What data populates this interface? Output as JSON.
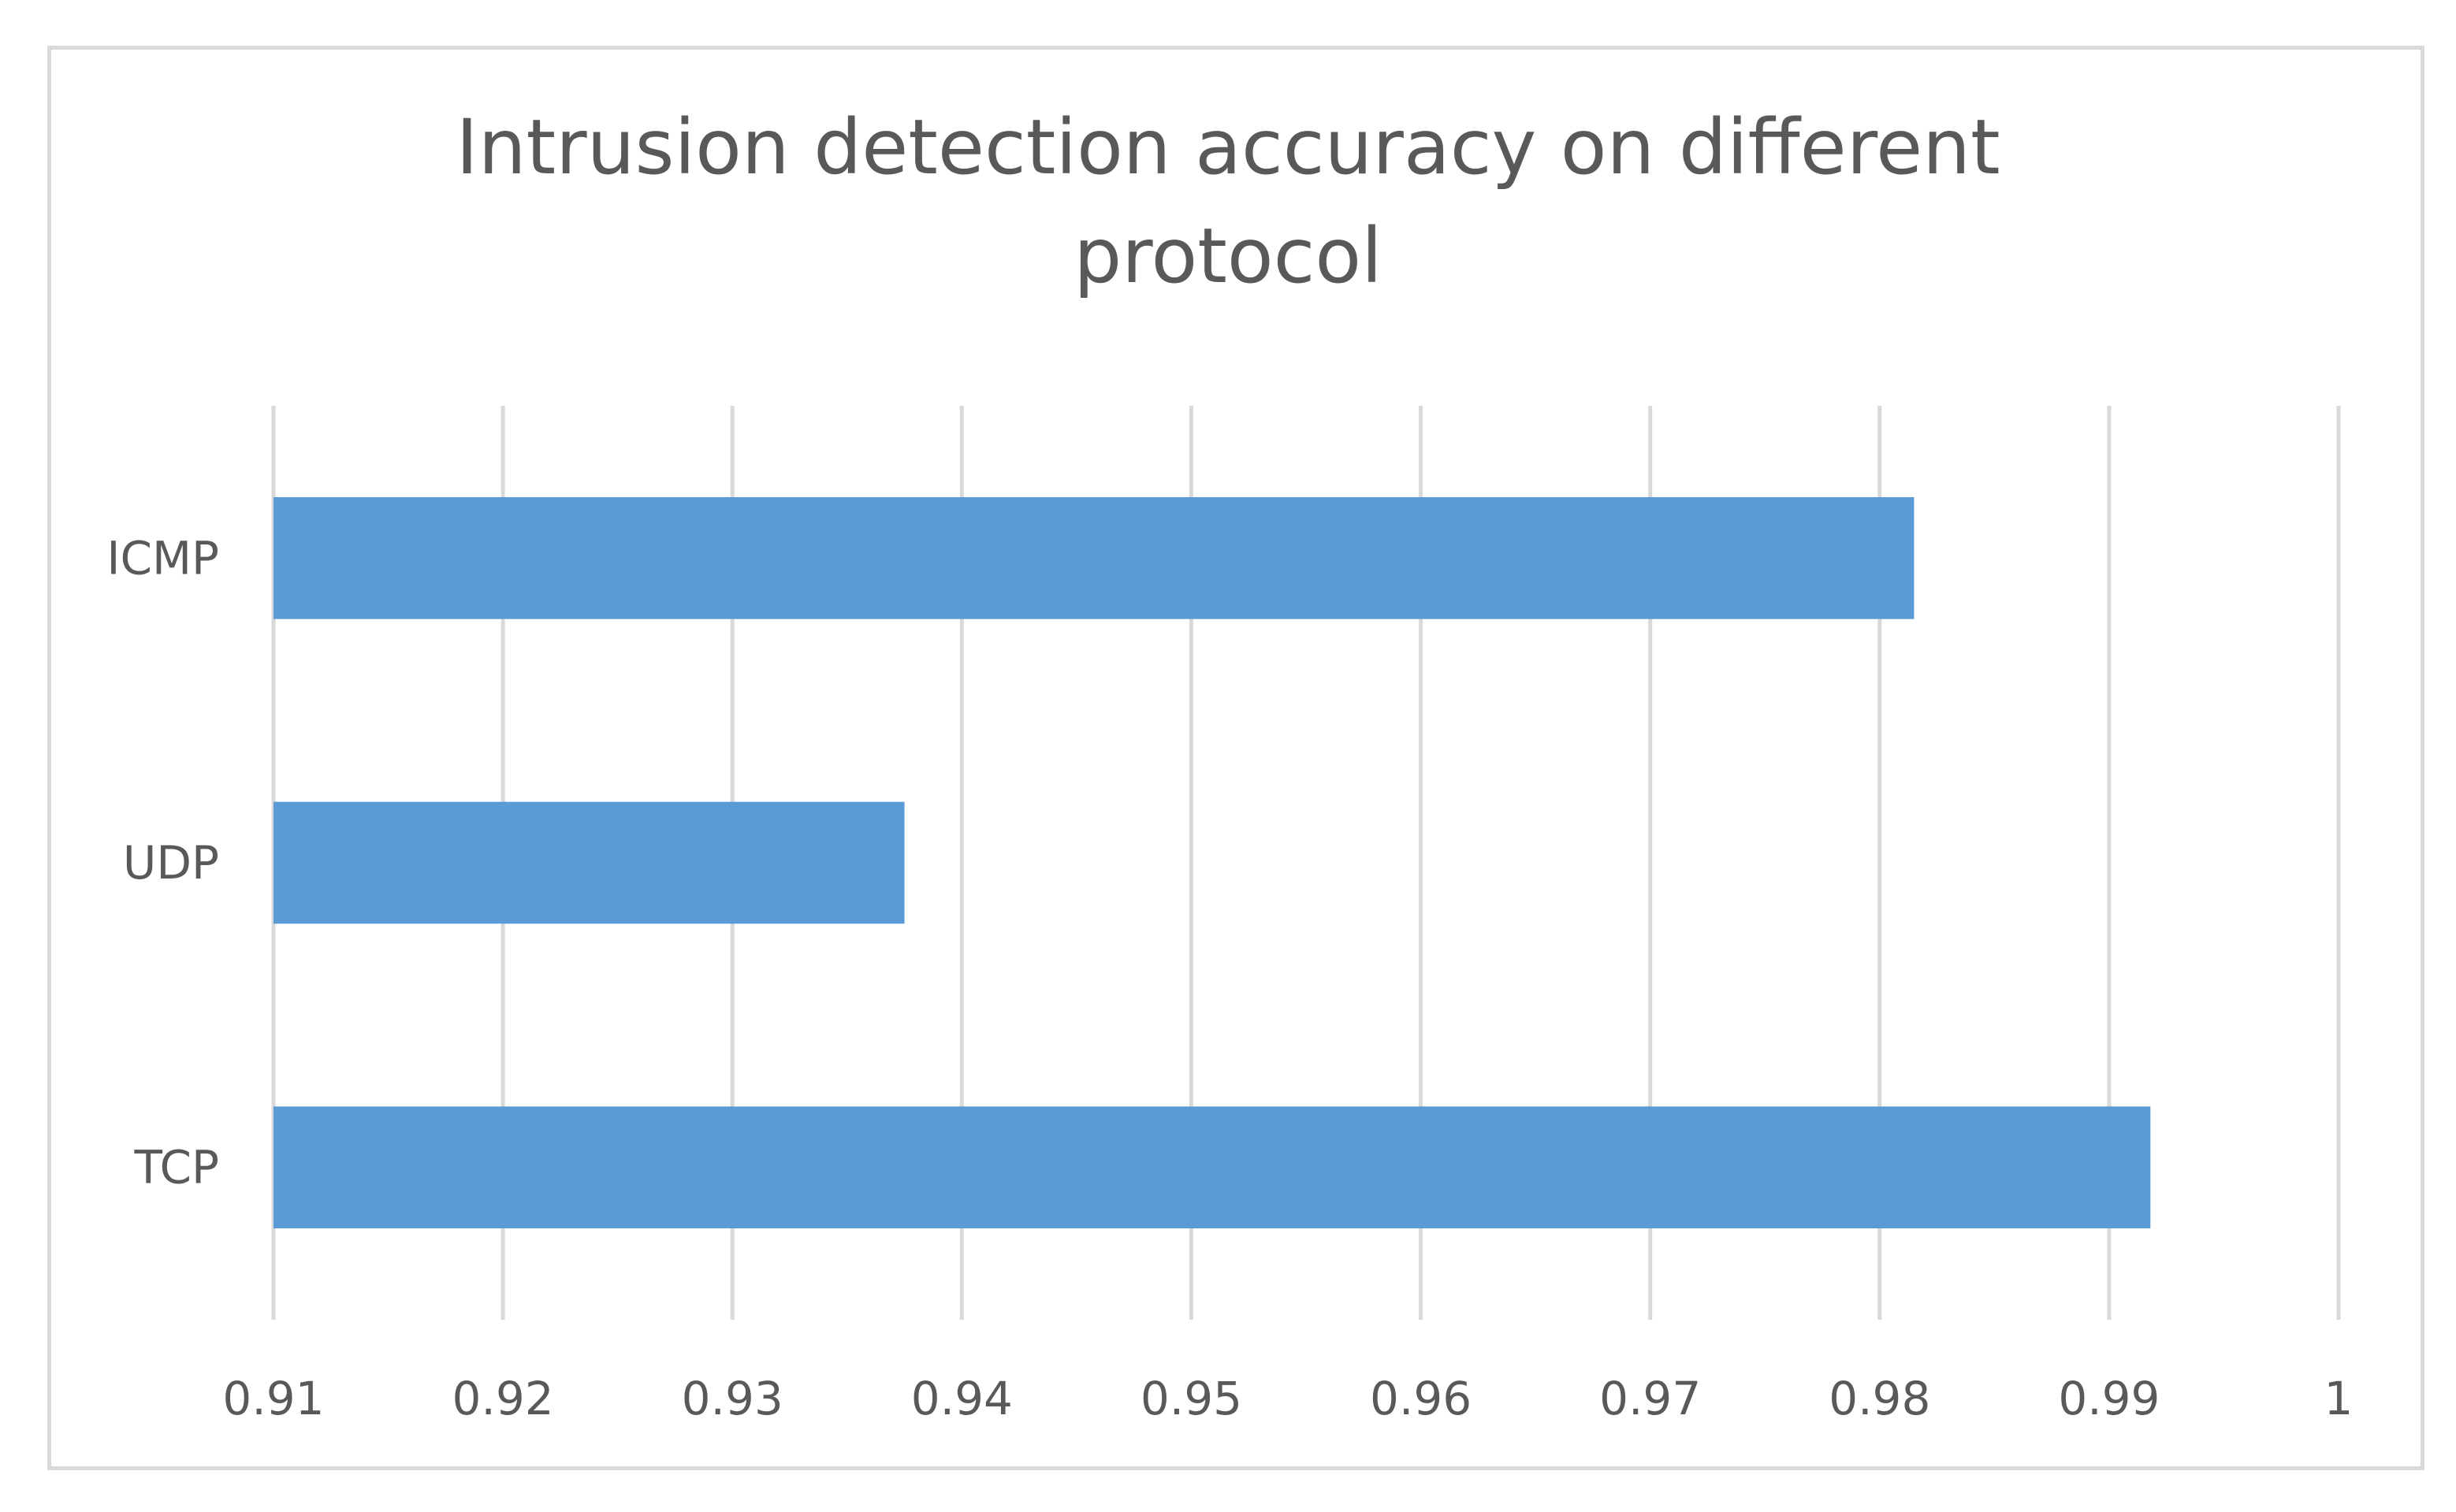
{
  "chart_data": {
    "type": "bar",
    "orientation": "horizontal",
    "title": "Intrusion detection accuracy on different protocol",
    "categories": [
      "ICMP",
      "UDP",
      "TCP"
    ],
    "values": [
      0.9815,
      0.9375,
      0.9918
    ],
    "xlim": [
      0.91,
      1.0
    ],
    "x_ticks": [
      "0.91",
      "0.92",
      "0.93",
      "0.94",
      "0.95",
      "0.96",
      "0.97",
      "0.98",
      "0.99",
      "1"
    ],
    "xlabel": "",
    "ylabel": "",
    "grid": "vertical",
    "legend": "none",
    "bar_color": "#5b9bd5",
    "grid_color": "#d9d9d9",
    "text_color": "#595959"
  }
}
